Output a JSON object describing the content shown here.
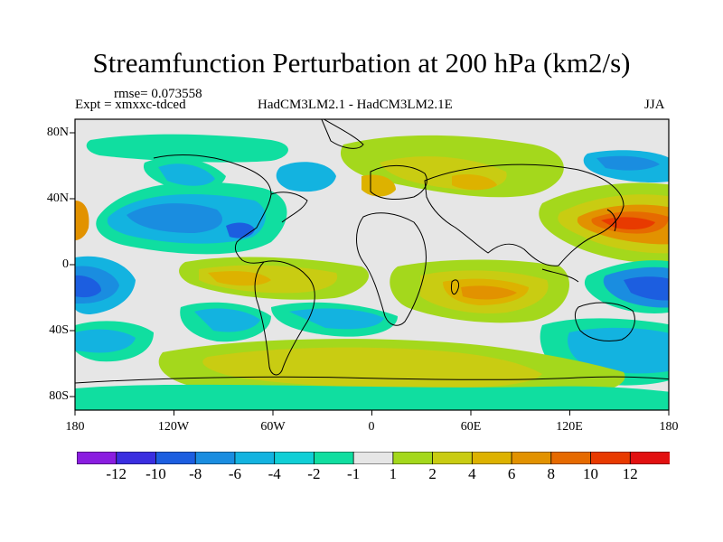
{
  "title": "Streamfunction Perturbation at 200 hPa (km2/s)",
  "rmse": "rmse= 0.073558",
  "expt": "Expt = xmxxc-tdced",
  "subtitle": "HadCM3LM2.1 - HadCM3LM2.1E",
  "season": "JJA",
  "lon_labels": [
    "180",
    "120W",
    "60W",
    "0",
    "60E",
    "120E",
    "180"
  ],
  "lat_labels": [
    "80N",
    "40N",
    "0",
    "40S",
    "80S"
  ],
  "colorbar": {
    "labels": [
      "-12",
      "-10",
      "-8",
      "-6",
      "-4",
      "-2",
      "-1",
      "1",
      "2",
      "4",
      "6",
      "8",
      "10",
      "12"
    ],
    "colors": [
      "#8a1de0",
      "#3a2ee0",
      "#1c5ee0",
      "#1a8de0",
      "#13b3e0",
      "#10cfd6",
      "#10dea0",
      "#e6e6e6",
      "#a4d81c",
      "#c9cc12",
      "#ddb200",
      "#e29200",
      "#e66a00",
      "#e83a00",
      "#e21010"
    ]
  }
}
